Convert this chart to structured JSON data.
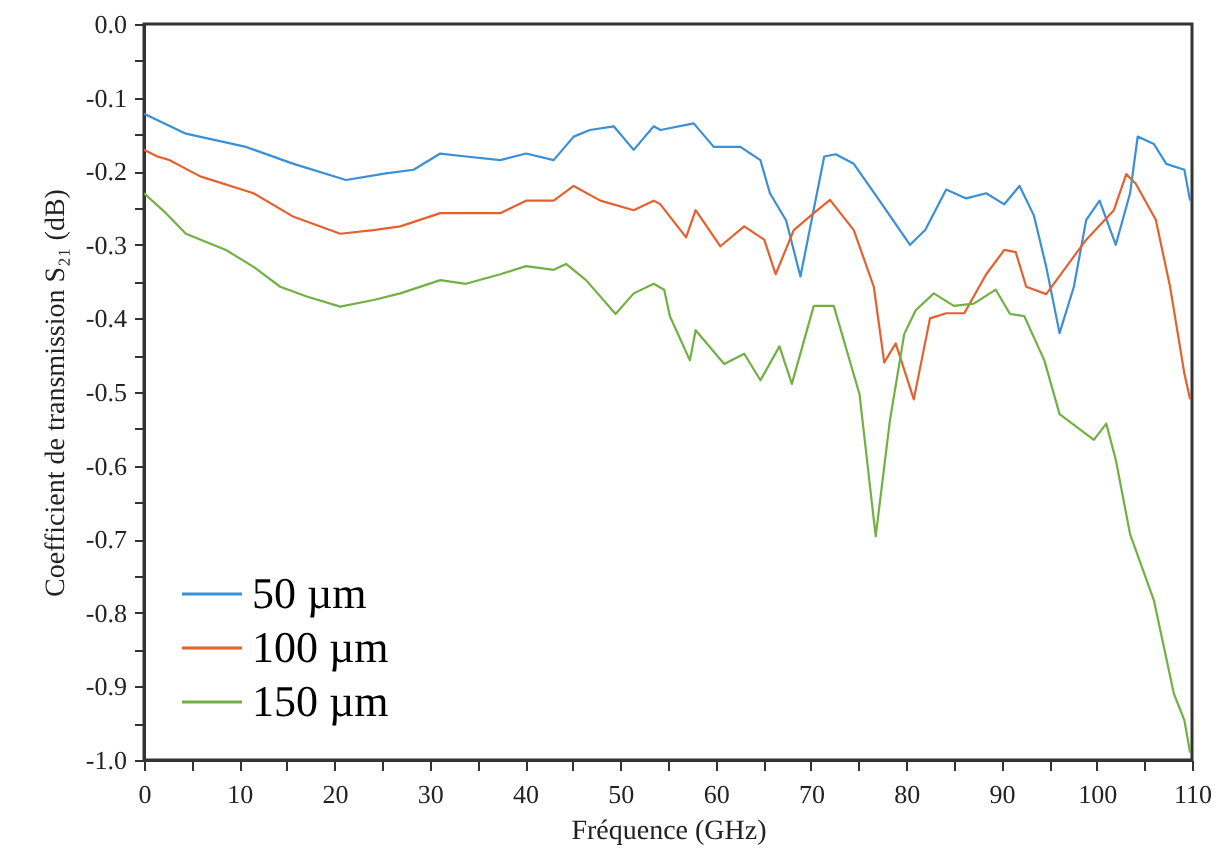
{
  "chart_data": {
    "type": "line",
    "xlabel": "Fréquence (GHz)",
    "ylabel": "Coefficient de transmission S₂₁ (dB)",
    "xlim": [
      0,
      110
    ],
    "ylim": [
      -1.0,
      0.0
    ],
    "xticks": [
      0,
      {
        "value": 5,
        "label": null
      },
      10,
      {
        "value": 15,
        "label": null
      },
      20,
      {
        "value": 25,
        "label": null
      },
      30,
      {
        "value": 35,
        "label": null
      },
      40,
      {
        "value": 45,
        "label": null
      },
      50,
      {
        "value": 55,
        "label": null
      },
      60,
      {
        "value": 65,
        "label": null
      },
      70,
      {
        "value": 75,
        "label": null
      },
      80,
      {
        "value": 85,
        "label": null
      },
      90,
      {
        "value": 95,
        "label": null
      },
      100,
      {
        "value": 105,
        "label": null
      },
      110
    ],
    "yticks": [
      {
        "value": -1.0,
        "label": "-1.0"
      },
      {
        "value": -0.95,
        "label": null
      },
      {
        "value": -0.9,
        "label": "-0.9"
      },
      {
        "value": -0.85,
        "label": null
      },
      {
        "value": -0.8,
        "label": "-0.8"
      },
      {
        "value": -0.75,
        "label": null
      },
      {
        "value": -0.7,
        "label": "-0.7"
      },
      {
        "value": -0.65,
        "label": null
      },
      {
        "value": -0.6,
        "label": "-0.6"
      },
      {
        "value": -0.55,
        "label": null
      },
      {
        "value": -0.5,
        "label": "-0.5"
      },
      {
        "value": -0.45,
        "label": null
      },
      {
        "value": -0.4,
        "label": "-0.4"
      },
      {
        "value": -0.35,
        "label": null
      },
      {
        "value": -0.3,
        "label": "-0.3"
      },
      {
        "value": -0.25,
        "label": null
      },
      {
        "value": -0.2,
        "label": "-0.2"
      },
      {
        "value": -0.15,
        "label": null
      },
      {
        "value": -0.1,
        "label": "-0.1"
      },
      {
        "value": -0.05,
        "label": null
      },
      {
        "value": 0.0,
        "label": "0.0"
      }
    ],
    "legend": "bottom left",
    "series": [
      {
        "name": "50 µm",
        "color": "#3a8fd6",
        "x": [
          0,
          4.4,
          10.7,
          15.7,
          21.2,
          25.4,
          28.3,
          31.1,
          33.8,
          37.4,
          40.1,
          43,
          45.1,
          46.8,
          49.3,
          51.4,
          53.5,
          54.2,
          57.7,
          59.8,
          62.6,
          64.7,
          65.7,
          67.4,
          68.9,
          71.4,
          72.6,
          74.5,
          77.2,
          80.4,
          82,
          84.2,
          86.3,
          88.4,
          90.3,
          91.9,
          93.4,
          94.7,
          96.1,
          97.6,
          98.9,
          100.3,
          102,
          103.5,
          104.3,
          106,
          107.3,
          109.2,
          109.8
        ],
        "values": [
          -0.122,
          -0.149,
          -0.167,
          -0.19,
          -0.212,
          -0.203,
          -0.198,
          -0.176,
          -0.18,
          -0.185,
          -0.176,
          -0.185,
          -0.153,
          -0.144,
          -0.139,
          -0.171,
          -0.139,
          -0.144,
          -0.135,
          -0.167,
          -0.167,
          -0.185,
          -0.23,
          -0.267,
          -0.343,
          -0.18,
          -0.177,
          -0.19,
          -0.24,
          -0.3,
          -0.28,
          -0.225,
          -0.237,
          -0.23,
          -0.245,
          -0.22,
          -0.26,
          -0.33,
          -0.42,
          -0.357,
          -0.266,
          -0.24,
          -0.3,
          -0.23,
          -0.153,
          -0.163,
          -0.19,
          -0.198,
          -0.24
        ]
      },
      {
        "name": "100 µm",
        "color": "#e5602f",
        "x": [
          0,
          1.4,
          2.7,
          5.9,
          11.5,
          15.7,
          20.6,
          24.1,
          26.9,
          31.1,
          33.8,
          37.4,
          40.1,
          43,
          45.1,
          47.9,
          51.4,
          53.5,
          54.2,
          56.9,
          57.9,
          60.5,
          63,
          65.1,
          66.3,
          68.2,
          70.3,
          72,
          74.5,
          76.6,
          77.7,
          78.9,
          80.8,
          82.5,
          84.2,
          86.1,
          88.4,
          90.3,
          91.5,
          92.6,
          94.7,
          96.8,
          98.9,
          101.8,
          103.1,
          104.1,
          106.2,
          107.7,
          109.2,
          109.8
        ],
        "values": [
          -0.171,
          -0.18,
          -0.185,
          -0.207,
          -0.23,
          -0.262,
          -0.285,
          -0.28,
          -0.275,
          -0.257,
          -0.257,
          -0.257,
          -0.24,
          -0.24,
          -0.22,
          -0.24,
          -0.253,
          -0.24,
          -0.245,
          -0.29,
          -0.253,
          -0.302,
          -0.275,
          -0.293,
          -0.34,
          -0.28,
          -0.257,
          -0.239,
          -0.28,
          -0.357,
          -0.46,
          -0.434,
          -0.51,
          -0.4,
          -0.393,
          -0.393,
          -0.34,
          -0.307,
          -0.31,
          -0.357,
          -0.367,
          -0.33,
          -0.293,
          -0.253,
          -0.204,
          -0.217,
          -0.266,
          -0.357,
          -0.475,
          -0.51
        ]
      },
      {
        "name": "150 µm",
        "color": "#72b043",
        "x": [
          0,
          2.3,
          4.4,
          8.6,
          11.5,
          14.3,
          17,
          20.6,
          24.1,
          26.9,
          31.1,
          33.8,
          37.4,
          40.1,
          43,
          44.3,
          46.4,
          49.5,
          51.4,
          53.5,
          54.6,
          55.2,
          57.3,
          57.9,
          60.9,
          63,
          64.7,
          66.7,
          68,
          70.3,
          72.4,
          75.1,
          76.8,
          78.3,
          79.8,
          81,
          82.9,
          85,
          87.1,
          89.4,
          90.9,
          92.4,
          94.5,
          96.1,
          99.7,
          101,
          102,
          103.5,
          106,
          108.1,
          109.2,
          109.8
        ],
        "values": [
          -0.23,
          -0.257,
          -0.285,
          -0.307,
          -0.33,
          -0.357,
          -0.37,
          -0.384,
          -0.375,
          -0.366,
          -0.348,
          -0.353,
          -0.34,
          -0.329,
          -0.334,
          -0.326,
          -0.348,
          -0.394,
          -0.366,
          -0.353,
          -0.361,
          -0.397,
          -0.457,
          -0.416,
          -0.462,
          -0.448,
          -0.484,
          -0.438,
          -0.489,
          -0.383,
          -0.383,
          -0.503,
          -0.696,
          -0.538,
          -0.421,
          -0.389,
          -0.366,
          -0.383,
          -0.38,
          -0.361,
          -0.394,
          -0.397,
          -0.457,
          -0.53,
          -0.565,
          -0.543,
          -0.592,
          -0.693,
          -0.783,
          -0.91,
          -0.946,
          -0.99
        ]
      }
    ]
  }
}
